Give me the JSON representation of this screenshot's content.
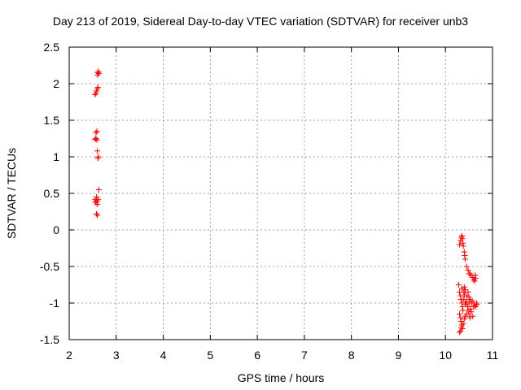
{
  "chart_data": {
    "type": "scatter",
    "title": "Day 213 of 2019, Sidereal Day-to-day VTEC variation (SDTVAR) for receiver unb3",
    "xlabel": "GPS time / hours",
    "ylabel": "SDTVAR / TECUs",
    "xlim": [
      2,
      11
    ],
    "ylim": [
      -1.5,
      2.5
    ],
    "x_ticks": [
      "2",
      "3",
      "4",
      "5",
      "6",
      "7",
      "8",
      "9",
      "10",
      "11"
    ],
    "y_ticks": [
      "2.5",
      "2",
      "1.5",
      "1",
      "0.5",
      "0",
      "-0.5",
      "-1",
      "-1.5"
    ],
    "grid": true,
    "marker": "plus",
    "series": [
      {
        "color": "#ff0000",
        "points": [
          [
            2.55,
            1.85
          ],
          [
            2.57,
            1.87
          ],
          [
            2.58,
            1.9
          ],
          [
            2.6,
            1.93
          ],
          [
            2.61,
            1.95
          ],
          [
            2.6,
            2.12
          ],
          [
            2.61,
            2.15
          ],
          [
            2.62,
            2.17
          ],
          [
            2.63,
            2.14
          ],
          [
            2.55,
            1.24
          ],
          [
            2.57,
            1.25
          ],
          [
            2.59,
            1.23
          ],
          [
            2.57,
            1.33
          ],
          [
            2.59,
            1.35
          ],
          [
            2.6,
            1.08
          ],
          [
            2.61,
            0.98
          ],
          [
            2.62,
            1.0
          ],
          [
            2.55,
            0.42
          ],
          [
            2.56,
            0.39
          ],
          [
            2.57,
            0.37
          ],
          [
            2.58,
            0.45
          ],
          [
            2.59,
            0.4
          ],
          [
            2.6,
            0.35
          ],
          [
            2.62,
            0.42
          ],
          [
            2.63,
            0.55
          ],
          [
            2.58,
            0.22
          ],
          [
            2.6,
            0.2
          ],
          [
            10.3,
            -0.2
          ],
          [
            10.32,
            -0.15
          ],
          [
            10.34,
            -0.1
          ],
          [
            10.35,
            -0.08
          ],
          [
            10.36,
            -0.12
          ],
          [
            10.37,
            -0.18
          ],
          [
            10.38,
            -0.22
          ],
          [
            10.4,
            -0.3
          ],
          [
            10.41,
            -0.35
          ],
          [
            10.42,
            -0.4
          ],
          [
            10.45,
            -0.5
          ],
          [
            10.48,
            -0.55
          ],
          [
            10.5,
            -0.6
          ],
          [
            10.52,
            -0.6
          ],
          [
            10.55,
            -0.62
          ],
          [
            10.58,
            -0.65
          ],
          [
            10.6,
            -0.68
          ],
          [
            10.62,
            -0.7
          ],
          [
            10.63,
            -0.62
          ],
          [
            10.64,
            -0.66
          ],
          [
            10.28,
            -0.75
          ],
          [
            10.3,
            -0.85
          ],
          [
            10.32,
            -0.9
          ],
          [
            10.33,
            -0.95
          ],
          [
            10.35,
            -1.0
          ],
          [
            10.36,
            -1.05
          ],
          [
            10.37,
            -1.1
          ],
          [
            10.38,
            -0.95
          ],
          [
            10.4,
            -0.9
          ],
          [
            10.41,
            -0.85
          ],
          [
            10.42,
            -1.0
          ],
          [
            10.43,
            -1.02
          ],
          [
            10.45,
            -0.98
          ],
          [
            10.47,
            -1.05
          ],
          [
            10.5,
            -1.0
          ],
          [
            10.52,
            -0.95
          ],
          [
            10.53,
            -1.08
          ],
          [
            10.55,
            -1.0
          ],
          [
            10.57,
            -0.97
          ],
          [
            10.6,
            -1.0
          ],
          [
            10.62,
            -1.03
          ],
          [
            10.64,
            -1.05
          ],
          [
            10.66,
            -1.0
          ],
          [
            10.67,
            -1.02
          ],
          [
            10.3,
            -1.15
          ],
          [
            10.32,
            -1.2
          ],
          [
            10.33,
            -1.25
          ],
          [
            10.35,
            -1.3
          ],
          [
            10.36,
            -1.35
          ],
          [
            10.38,
            -1.28
          ],
          [
            10.4,
            -1.22
          ],
          [
            10.42,
            -1.18
          ],
          [
            10.3,
            -1.4
          ],
          [
            10.32,
            -1.38
          ],
          [
            10.34,
            -1.33
          ],
          [
            10.45,
            -1.15
          ],
          [
            10.48,
            -1.1
          ],
          [
            10.5,
            -1.15
          ],
          [
            10.52,
            -1.2
          ],
          [
            10.55,
            -1.12
          ],
          [
            10.58,
            -1.18
          ],
          [
            10.6,
            -1.05
          ],
          [
            10.35,
            -0.8
          ],
          [
            10.38,
            -0.85
          ],
          [
            10.4,
            -0.78
          ],
          [
            10.42,
            -0.82
          ],
          [
            10.45,
            -0.9
          ],
          [
            10.48,
            -0.85
          ],
          [
            10.5,
            -0.92
          ]
        ]
      }
    ]
  }
}
